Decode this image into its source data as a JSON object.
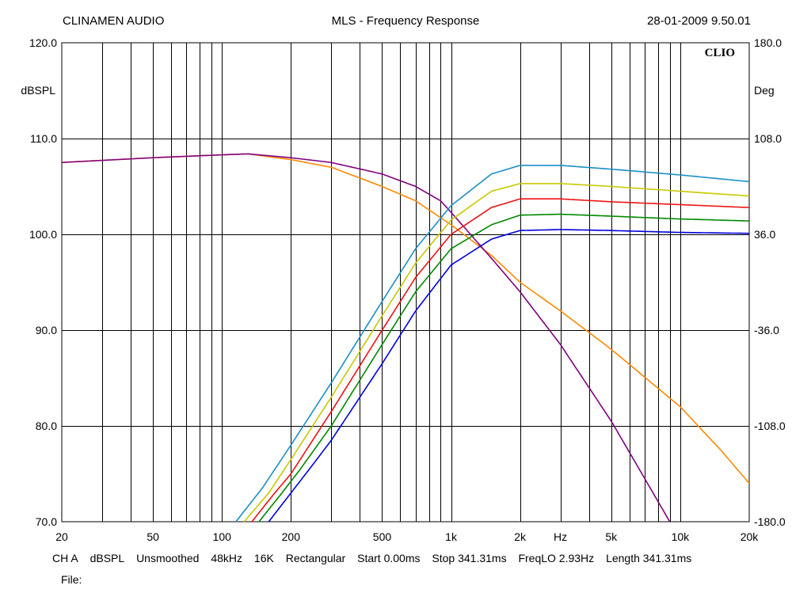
{
  "header": {
    "left": "CLINAMEN AUDIO",
    "center": "MLS - Frequency Response",
    "right": "28-01-2009 9.50.01"
  },
  "chart_data": {
    "type": "line",
    "title": "MLS - Frequency Response",
    "xscale": "log",
    "xlim": [
      20,
      20000
    ],
    "ylim": [
      70,
      120
    ],
    "y2lim": [
      -180,
      180
    ],
    "ylabel": "dBSPL",
    "y2label": "Deg",
    "xlabel": "Hz",
    "grid": true,
    "logo": "CLIO",
    "x_ticks": [
      {
        "v": 20,
        "t": "20"
      },
      {
        "v": 50,
        "t": "50"
      },
      {
        "v": 100,
        "t": "100"
      },
      {
        "v": 200,
        "t": "200"
      },
      {
        "v": 500,
        "t": "500"
      },
      {
        "v": 1000,
        "t": "1k"
      },
      {
        "v": 2000,
        "t": "2k"
      },
      {
        "v": 3000,
        "t": "Hz"
      },
      {
        "v": 5000,
        "t": "5k"
      },
      {
        "v": 10000,
        "t": "10k"
      },
      {
        "v": 20000,
        "t": "20k"
      }
    ],
    "y_ticks": [
      "120.0",
      "110.0",
      "100.0",
      "90.0",
      "80.0",
      "70.0"
    ],
    "y2_ticks": [
      "180.0",
      "108.0",
      "36.0",
      "-36.0",
      "-108.0",
      "-180.0"
    ],
    "series": [
      {
        "color": "#ff8800",
        "x": [
          20,
          50,
          100,
          130,
          200,
          300,
          500,
          700,
          1000,
          1500,
          2000,
          3000,
          5000,
          10000,
          15000,
          20000
        ],
        "y": [
          107.5,
          108.0,
          108.3,
          108.4,
          107.8,
          107.0,
          105.0,
          103.5,
          101.0,
          97.8,
          95.0,
          92.0,
          88.0,
          82.0,
          77.5,
          74.0
        ]
      },
      {
        "color": "#800080",
        "x": [
          20,
          50,
          100,
          130,
          200,
          300,
          500,
          700,
          900,
          1000,
          1500,
          2000,
          3000,
          5000,
          7000,
          9000
        ],
        "y": [
          107.5,
          108.0,
          108.3,
          108.4,
          108.0,
          107.5,
          106.3,
          105.0,
          103.5,
          102.3,
          97.5,
          94.0,
          88.5,
          80.5,
          74.5,
          70.0
        ]
      },
      {
        "color": "#1a8fc4",
        "x": [
          115,
          150,
          200,
          300,
          500,
          700,
          1000,
          1500,
          2000,
          3000,
          5000,
          10000,
          20000
        ],
        "y": [
          70.0,
          73.5,
          78.0,
          84.5,
          93.0,
          98.5,
          103.0,
          106.3,
          107.2,
          107.2,
          106.8,
          106.2,
          105.5
        ]
      },
      {
        "color": "#c8c800",
        "x": [
          125,
          160,
          200,
          300,
          500,
          700,
          1000,
          1500,
          2000,
          3000,
          5000,
          10000,
          20000
        ],
        "y": [
          70.0,
          73.0,
          76.5,
          83.0,
          91.5,
          97.0,
          101.5,
          104.5,
          105.3,
          105.3,
          105.0,
          104.5,
          104.0
        ]
      },
      {
        "color": "#ee1111",
        "x": [
          135,
          170,
          200,
          300,
          500,
          700,
          1000,
          1500,
          2000,
          3000,
          5000,
          10000,
          20000
        ],
        "y": [
          70.0,
          73.0,
          75.0,
          81.5,
          90.0,
          95.5,
          100.0,
          102.8,
          103.7,
          103.7,
          103.4,
          103.1,
          102.8
        ]
      },
      {
        "color": "#008800",
        "x": [
          145,
          180,
          220,
          300,
          500,
          700,
          1000,
          1500,
          2000,
          3000,
          5000,
          10000,
          20000
        ],
        "y": [
          70.0,
          72.8,
          75.5,
          80.0,
          88.5,
          94.0,
          98.5,
          101.0,
          102.0,
          102.1,
          101.9,
          101.6,
          101.4
        ]
      },
      {
        "color": "#0000dd",
        "x": [
          160,
          200,
          250,
          300,
          500,
          700,
          1000,
          1500,
          2000,
          3000,
          5000,
          10000,
          20000
        ],
        "y": [
          70.0,
          73.0,
          76.0,
          78.5,
          86.5,
          92.0,
          96.8,
          99.5,
          100.4,
          100.5,
          100.4,
          100.2,
          100.1
        ]
      }
    ]
  },
  "footer": {
    "items": [
      "CH A",
      "dBSPL",
      "Unsmoothed",
      "48kHz",
      "16K",
      "Rectangular",
      "Start 0.00ms",
      "Stop 341.31ms",
      "FreqLO 2.93Hz",
      "Length 341.31ms"
    ],
    "file_label": "File:"
  }
}
